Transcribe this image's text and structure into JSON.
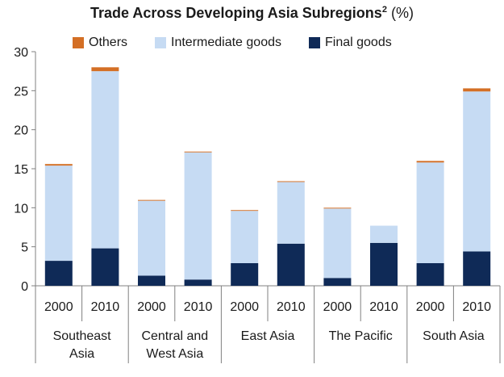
{
  "chart_data": {
    "type": "bar",
    "stacked": true,
    "title": "Trade Across Developing Asia Subregions",
    "title_superscript": "2",
    "unit": "(%)",
    "categories": [
      "2000",
      "2010",
      "2000",
      "2010",
      "2000",
      "2010",
      "2000",
      "2010",
      "2000",
      "2010"
    ],
    "groups": [
      {
        "label_lines": [
          "Southeast",
          "Asia"
        ],
        "span": 2
      },
      {
        "label_lines": [
          "Central and",
          "West Asia"
        ],
        "span": 2
      },
      {
        "label_lines": [
          "East Asia"
        ],
        "span": 2
      },
      {
        "label_lines": [
          "The Pacific"
        ],
        "span": 2
      },
      {
        "label_lines": [
          "South Asia"
        ],
        "span": 2
      }
    ],
    "series": [
      {
        "name": "Final goods",
        "color": "#0f2a57",
        "values": [
          3.2,
          4.8,
          1.3,
          0.8,
          2.9,
          5.4,
          1.0,
          5.5,
          2.9,
          4.4
        ]
      },
      {
        "name": "Intermediate goods",
        "color": "#c6dbf3",
        "values": [
          12.2,
          22.7,
          9.6,
          16.3,
          6.7,
          7.9,
          8.9,
          2.2,
          12.9,
          20.5
        ]
      },
      {
        "name": "Others",
        "color": "#d46f25",
        "values": [
          0.2,
          0.5,
          0.1,
          0.1,
          0.1,
          0.1,
          0.1,
          0.0,
          0.2,
          0.4
        ]
      }
    ],
    "legend_order": [
      "Others",
      "Intermediate goods",
      "Final goods"
    ],
    "ylim": [
      0,
      30
    ],
    "yticks": [
      0,
      5,
      10,
      15,
      20,
      25,
      30
    ],
    "grid": false,
    "legend_position": "top"
  }
}
